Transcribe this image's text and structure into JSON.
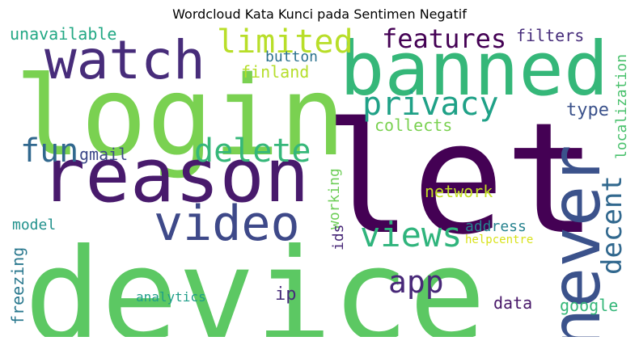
{
  "title": "Wordcloud Kata Kunci pada Sentimen Negatif",
  "words": [
    {
      "text": "device",
      "color": "#5cc863",
      "orientation": "horizontal"
    },
    {
      "text": "let",
      "color": "#440154",
      "orientation": "horizontal"
    },
    {
      "text": "login",
      "color": "#7ad151",
      "orientation": "horizontal"
    },
    {
      "text": "banned",
      "color": "#35b779",
      "orientation": "horizontal"
    },
    {
      "text": "reason",
      "color": "#481a6c",
      "orientation": "horizontal"
    },
    {
      "text": "never",
      "color": "#3b528b",
      "orientation": "vertical"
    },
    {
      "text": "watch",
      "color": "#472c7a",
      "orientation": "horizontal"
    },
    {
      "text": "video",
      "color": "#3e4989",
      "orientation": "horizontal"
    },
    {
      "text": "delete",
      "color": "#35b779",
      "orientation": "horizontal"
    },
    {
      "text": "views",
      "color": "#2fb47c",
      "orientation": "horizontal"
    },
    {
      "text": "privacy",
      "color": "#1fa187",
      "orientation": "horizontal"
    },
    {
      "text": "limited",
      "color": "#b8de29",
      "orientation": "horizontal"
    },
    {
      "text": "features",
      "color": "#440154",
      "orientation": "horizontal"
    },
    {
      "text": "app",
      "color": "#482878",
      "orientation": "horizontal"
    },
    {
      "text": "decent",
      "color": "#31688e",
      "orientation": "vertical"
    },
    {
      "text": "fun",
      "color": "#31688e",
      "orientation": "horizontal"
    },
    {
      "text": "unavailable",
      "color": "#22a884",
      "orientation": "horizontal"
    },
    {
      "text": "filters",
      "color": "#472d7b",
      "orientation": "horizontal"
    },
    {
      "text": "button",
      "color": "#2c728e",
      "orientation": "horizontal"
    },
    {
      "text": "finland",
      "color": "#b5de2b",
      "orientation": "horizontal"
    },
    {
      "text": "localization",
      "color": "#4ac16d",
      "orientation": "vertical"
    },
    {
      "text": "type",
      "color": "#3b528b",
      "orientation": "horizontal"
    },
    {
      "text": "collects",
      "color": "#7ad151",
      "orientation": "horizontal"
    },
    {
      "text": "gmail",
      "color": "#3e4989",
      "orientation": "horizontal"
    },
    {
      "text": "working",
      "color": "#6ece58",
      "orientation": "vertical"
    },
    {
      "text": "network",
      "color": "#c2df23",
      "orientation": "horizontal"
    },
    {
      "text": "model",
      "color": "#21918c",
      "orientation": "horizontal"
    },
    {
      "text": "address",
      "color": "#26828e",
      "orientation": "horizontal"
    },
    {
      "text": "ids",
      "color": "#482878",
      "orientation": "vertical"
    },
    {
      "text": "helpcentre",
      "color": "#d8e219",
      "orientation": "horizontal"
    },
    {
      "text": "freezing",
      "color": "#2a788e",
      "orientation": "vertical"
    },
    {
      "text": "ip",
      "color": "#472c7a",
      "orientation": "horizontal"
    },
    {
      "text": "analytics",
      "color": "#1f9e89",
      "orientation": "horizontal"
    },
    {
      "text": "data",
      "color": "#481769",
      "orientation": "horizontal"
    },
    {
      "text": "google",
      "color": "#35b779",
      "orientation": "horizontal"
    }
  ]
}
